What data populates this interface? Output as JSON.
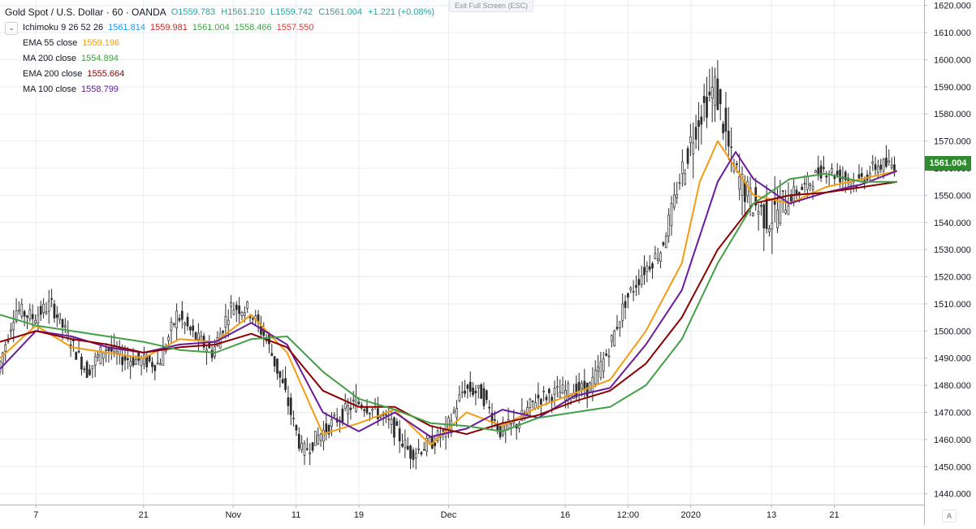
{
  "header": {
    "symbol_title": "Gold Spot / U.S. Dollar · 60 · OANDA",
    "open": "O1559.783",
    "high": "H1561.210",
    "low": "L1559.742",
    "close": "C1561.004",
    "change": "+1.221 (+0.08%)",
    "exit_fullscreen": "Exit Full Screen (ESC)"
  },
  "indicators": [
    {
      "name": "Ichimoku 9 26 52 26",
      "values": [
        {
          "text": "1561.814",
          "color": "#2196f3"
        },
        {
          "text": "1559.981",
          "color": "#c62828"
        },
        {
          "text": "1561.004",
          "color": "#43a047"
        },
        {
          "text": "1558.466",
          "color": "#43a047"
        },
        {
          "text": "1557.550",
          "color": "#e53935"
        }
      ]
    },
    {
      "name": "EMA 55 close",
      "values": [
        {
          "text": "1559.196",
          "color": "#f39c12"
        }
      ]
    },
    {
      "name": "MA 200 close",
      "values": [
        {
          "text": "1554.894",
          "color": "#43a047"
        }
      ]
    },
    {
      "name": "EMA 200 close",
      "values": [
        {
          "text": "1555.664",
          "color": "#8b0000"
        }
      ]
    },
    {
      "name": "MA 100 close",
      "values": [
        {
          "text": "1558.799",
          "color": "#6a1b9a"
        }
      ]
    }
  ],
  "price_tag": "1561.004",
  "auto_button": "A",
  "colors": {
    "up": "#26a69a",
    "down": "#ef5350",
    "candle": "#2b2b2b",
    "ema55": "#f39c12",
    "ma200": "#43a047",
    "ema200": "#8b0000",
    "ma100": "#6a1b9a",
    "grid": "#e9ecf2",
    "axis_text": "#131722",
    "price_tag_bg": "#2e8b2e"
  },
  "chart_data": {
    "type": "line",
    "title": "Gold Spot / U.S. Dollar · 60 · OANDA",
    "xlabel": "",
    "ylabel": "",
    "ylim": [
      1436,
      1622
    ],
    "y_ticks": [
      "1440.000",
      "1450.000",
      "1460.000",
      "1470.000",
      "1480.000",
      "1490.000",
      "1500.000",
      "1510.000",
      "1520.000",
      "1530.000",
      "1540.000",
      "1550.000",
      "1560.000",
      "1570.000",
      "1580.000",
      "1590.000",
      "1600.000",
      "1610.000",
      "1620.000"
    ],
    "x_ticks": [
      "7",
      "21",
      "Nov",
      "11",
      "19",
      "Dec",
      "16",
      "12:00",
      "2020",
      "13",
      "21"
    ],
    "x_tick_pos": [
      2,
      8,
      13,
      16.5,
      20,
      25,
      31.5,
      35,
      38.5,
      43,
      46.5
    ],
    "x_range": [
      0,
      51.5
    ],
    "grid": true,
    "series": [
      {
        "name": "Price",
        "x": [
          0,
          1,
          2,
          3,
          4,
          5,
          6,
          7,
          8,
          9,
          10,
          11,
          12,
          13,
          14,
          15,
          16,
          17,
          18,
          19,
          20,
          21,
          22,
          23,
          24,
          25,
          26,
          27,
          28,
          29,
          30,
          31,
          32,
          33,
          34,
          35,
          36,
          37,
          38,
          39,
          40,
          41,
          42,
          43,
          44,
          45,
          46,
          47,
          48,
          49,
          50
        ],
        "values": [
          1485,
          1508,
          1505,
          1510,
          1497,
          1485,
          1494,
          1490,
          1489,
          1488,
          1506,
          1498,
          1492,
          1509,
          1508,
          1497,
          1478,
          1455,
          1462,
          1468,
          1474,
          1471,
          1465,
          1455,
          1458,
          1463,
          1479,
          1477,
          1463,
          1466,
          1475,
          1477,
          1478,
          1479,
          1492,
          1511,
          1522,
          1530,
          1555,
          1578,
          1590,
          1560,
          1548,
          1541,
          1549,
          1553,
          1560,
          1557,
          1555,
          1561,
          1561
        ]
      },
      {
        "name": "EMA 55 close",
        "x": [
          0,
          2,
          4,
          6,
          8,
          10,
          12,
          14,
          16,
          18,
          20,
          22,
          24,
          26,
          28,
          30,
          32,
          34,
          36,
          38,
          39,
          40,
          42,
          44,
          46,
          48,
          50
        ],
        "values": [
          1490,
          1502,
          1494,
          1492,
          1490,
          1497,
          1496,
          1506,
          1492,
          1462,
          1466,
          1471,
          1458,
          1470,
          1465,
          1472,
          1477,
          1482,
          1500,
          1525,
          1555,
          1570,
          1550,
          1547,
          1553,
          1556,
          1559
        ]
      },
      {
        "name": "MA 100 close",
        "x": [
          0,
          2,
          4,
          6,
          8,
          10,
          12,
          14,
          16,
          18,
          20,
          22,
          24,
          26,
          28,
          30,
          32,
          34,
          36,
          38,
          40,
          41,
          42,
          44,
          46,
          48,
          50
        ],
        "values": [
          1486,
          1500,
          1498,
          1494,
          1492,
          1495,
          1496,
          1503,
          1495,
          1470,
          1463,
          1470,
          1461,
          1464,
          1471,
          1468,
          1476,
          1479,
          1495,
          1515,
          1555,
          1566,
          1556,
          1547,
          1551,
          1554,
          1559
        ]
      },
      {
        "name": "EMA 200 close",
        "x": [
          0,
          2,
          4,
          6,
          8,
          10,
          12,
          14,
          16,
          18,
          20,
          22,
          24,
          26,
          28,
          30,
          32,
          34,
          36,
          38,
          40,
          42,
          44,
          46,
          48,
          50
        ],
        "values": [
          1496,
          1500,
          1497,
          1495,
          1492,
          1494,
          1495,
          1499,
          1494,
          1478,
          1472,
          1472,
          1465,
          1462,
          1466,
          1469,
          1474,
          1478,
          1488,
          1505,
          1530,
          1547,
          1550,
          1551,
          1553,
          1555
        ]
      },
      {
        "name": "MA 200 close",
        "x": [
          0,
          2,
          4,
          6,
          8,
          10,
          12,
          14,
          16,
          18,
          20,
          22,
          24,
          26,
          28,
          30,
          32,
          34,
          36,
          38,
          40,
          42,
          44,
          46,
          48,
          50
        ],
        "values": [
          1506,
          1502,
          1500,
          1498,
          1496,
          1493,
          1492,
          1497,
          1498,
          1485,
          1475,
          1471,
          1466,
          1465,
          1463,
          1468,
          1470,
          1472,
          1480,
          1497,
          1525,
          1547,
          1556,
          1558,
          1555,
          1555
        ]
      }
    ]
  }
}
